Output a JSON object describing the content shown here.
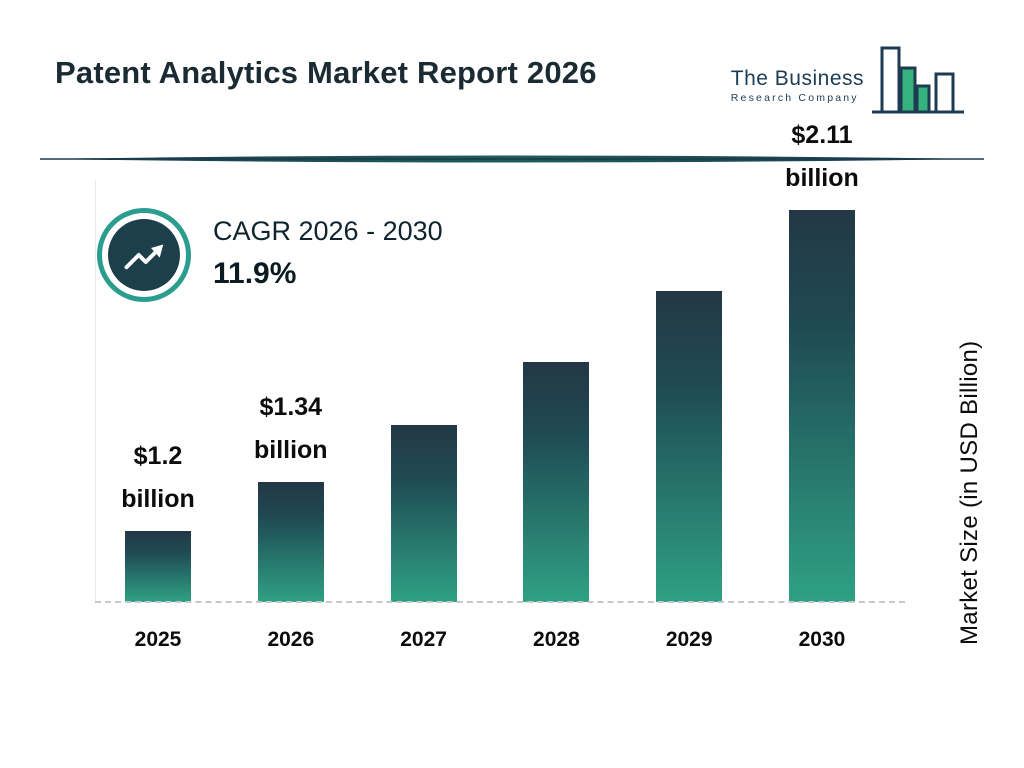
{
  "header": {
    "title": "Patent Analytics Market Report 2026",
    "logo": {
      "line1": "The Business",
      "line2": "Research Company"
    }
  },
  "cagr": {
    "label": "CAGR 2026 - 2030",
    "value": "11.9%"
  },
  "colors": {
    "accent_teal": "#2A9D8F",
    "dark_navy": "#1C3A4A",
    "bar_gradient_top": "#233844",
    "bar_gradient_bottom": "#2FA183",
    "logo_navy": "#1D3B53",
    "logo_fill_green": "#35B27E"
  },
  "chart_data": {
    "type": "bar",
    "categories": [
      "2025",
      "2026",
      "2027",
      "2028",
      "2029",
      "2030"
    ],
    "values": [
      1.2,
      1.34,
      1.5,
      1.68,
      1.88,
      2.11
    ],
    "bar_labels": [
      [
        "$1.2",
        "billion"
      ],
      [
        "$1.34",
        "billion"
      ],
      null,
      null,
      null,
      [
        "$2.11",
        "billion"
      ]
    ],
    "title": "Patent Analytics Market Report 2026",
    "xlabel": "",
    "ylabel": "Market Size (in USD Billion)",
    "ylim": [
      1.0,
      2.2
    ],
    "grid": false,
    "legend": false,
    "baseline_style": "dashed"
  }
}
